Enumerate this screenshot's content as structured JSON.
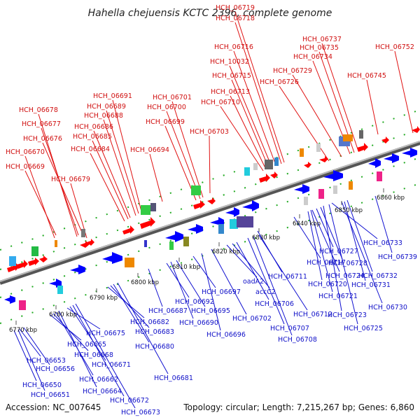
{
  "title": "Hahella chejuensis KCTC 2396, complete genome",
  "footer": {
    "accession": "Accession: NC_007645",
    "topology": "Topology: circular; Length: 7,215,267 bp; Genes: 6,860"
  },
  "ticks": [
    "6770 kbp",
    "6780 kbp",
    "6790 kbp",
    "6800 kbp",
    "6810 kbp",
    "6820 kbp",
    "6830 kbp",
    "6840 kbp",
    "6850 kbp",
    "6860 kbp"
  ],
  "top_genes": [
    "HCH_06678",
    "HCH_06677",
    "HCH_06676",
    "HCH_06670",
    "HCH_06669",
    "HCH_06679",
    "HCH_06691",
    "HCH_06689",
    "HCH_06688",
    "HCH_06686",
    "HCH_06685",
    "HCH_06684",
    "HCH_06694",
    "HCH_06701",
    "HCH_06700",
    "HCH_06699",
    "HCH_06703",
    "HCH_06719",
    "HCH_06718",
    "HCH_06716",
    "HCH_10032",
    "HCH_06715",
    "HCH_06713",
    "HCH_06710",
    "HCH_06737",
    "HCH_06735",
    "HCH_06734",
    "HCH_06729",
    "HCH_06726",
    "HCH_06752",
    "HCH_06745"
  ],
  "bottom_genes": [
    "HCH_06653",
    "HCH_06656",
    "HCH_06650",
    "HCH_06651",
    "HCH_06665",
    "HCH_06668",
    "HCH_06662",
    "HCH_06664",
    "HCH_06675",
    "HCH_06671",
    "HCH_06672",
    "HCH_06673",
    "HCH_06682",
    "HCH_06683",
    "HCH_06680",
    "HCH_06681",
    "HCH_06687",
    "HCH_06692",
    "HCH_06690",
    "HCH_06695",
    "HCH_06697",
    "HCH_06696",
    "HCH_06702",
    "oadA2",
    "accC2",
    "HCH_06706",
    "HCH_06707",
    "HCH_06708",
    "HCH_06712",
    "HCH_06711",
    "HCH_06717",
    "HCH_06724",
    "HCH_06720",
    "HCH_06721",
    "HCH_06727",
    "HCH_06728",
    "HCH_06723",
    "HCH_06725",
    "HCH_06733",
    "HCH_06739",
    "HCH_06732",
    "HCH_06731",
    "HCH_06730"
  ],
  "colors": {
    "forward": "#ff0000",
    "reverse": "#0000ff",
    "backbone": "#808080",
    "track_dots": "#22aa22"
  }
}
